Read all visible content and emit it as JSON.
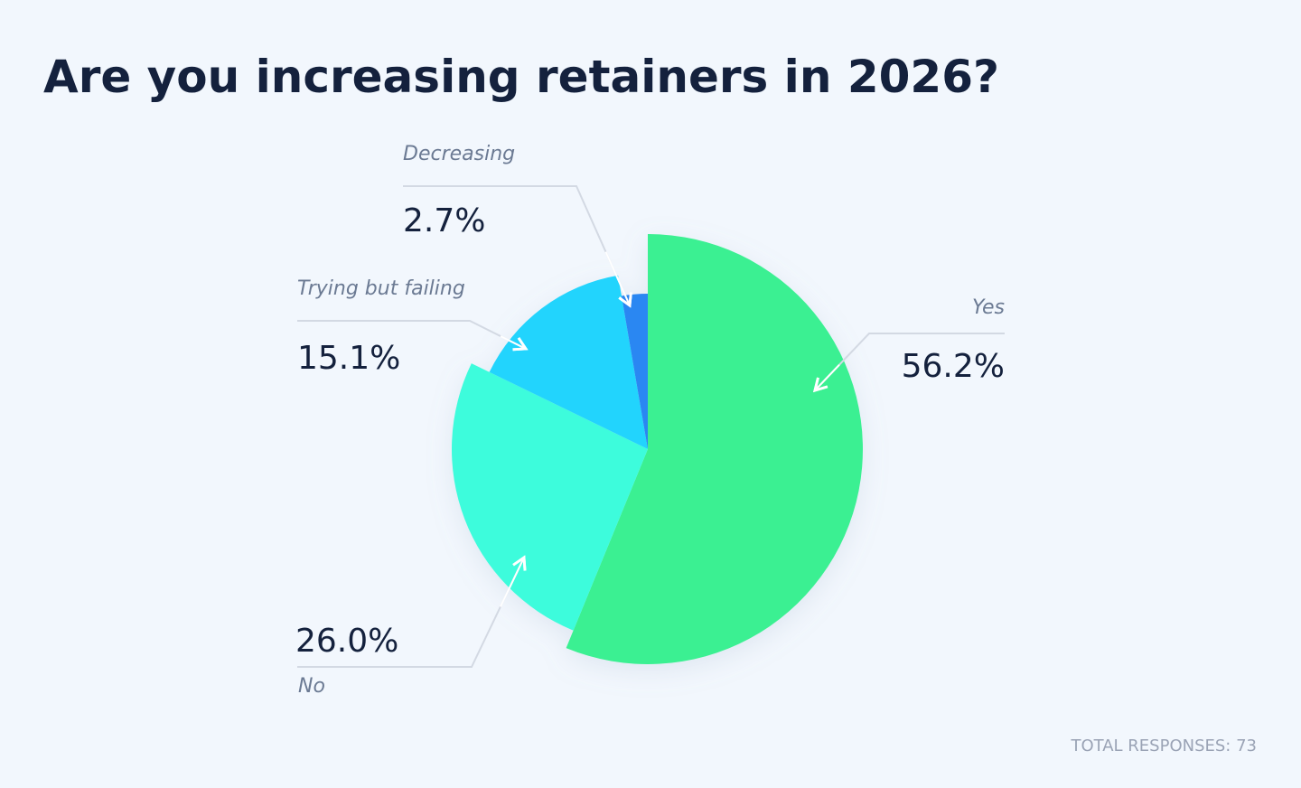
{
  "chart_data": {
    "type": "pie",
    "title": "Are you increasing retainers in 2026?",
    "categories": [
      "Yes",
      "No",
      "Trying but failing",
      "Decreasing"
    ],
    "values": [
      56.2,
      26.0,
      15.1,
      2.7
    ],
    "value_labels": [
      "56.2%",
      "26.0%",
      "15.1%",
      "2.7%"
    ],
    "colors": [
      "#3af092",
      "#3dfcdc",
      "#22d4fd",
      "#2b87f2"
    ],
    "footnote": "TOTAL RESPONSES: 73"
  }
}
